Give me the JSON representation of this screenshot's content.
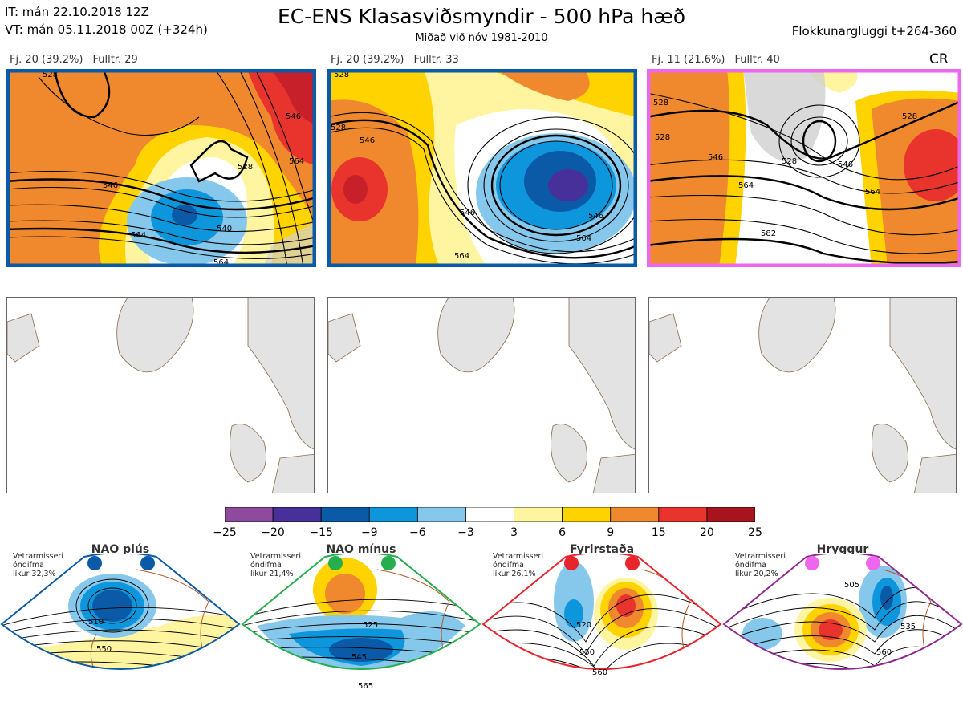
{
  "header": {
    "it_line": "IT: mán 22.10.2018 12Z",
    "vt_line": "VT: mán 05.11.2018 00Z  (+324h)",
    "title": "EC-ENS Klasasviðsmyndir - 500 hPa hæð",
    "subtitle": "Miðað við nóv 1981-2010",
    "window": "Flokkunargluggi t+264-360",
    "cr_label": "CR"
  },
  "chart_data": {
    "type": "heatmap",
    "clusters": [
      {
        "count_label": "Fj. 20 (39.2%)",
        "rep_label": "Fulltr. 29",
        "members": 20,
        "percent": 39.2,
        "representative": 29,
        "frame_color": "#0a5aa8",
        "contour_labels": [
          "528",
          "546",
          "564",
          "540",
          "528",
          "546",
          "564",
          "564"
        ]
      },
      {
        "count_label": "Fj. 20 (39.2%)",
        "rep_label": "Fulltr. 33",
        "members": 20,
        "percent": 39.2,
        "representative": 33,
        "frame_color": "#0a5aa8",
        "contour_labels": [
          "528",
          "546",
          "528",
          "546",
          "546",
          "564",
          "564"
        ]
      },
      {
        "count_label": "Fj. 11 (21.6%)",
        "rep_label": "Fulltr. 40",
        "members": 11,
        "percent": 21.6,
        "representative": 40,
        "frame_color": "#ee66ee",
        "contour_labels": [
          "528",
          "528",
          "546",
          "528",
          "546",
          "564",
          "564",
          "582",
          "528"
        ]
      }
    ],
    "colorbar": {
      "ticks": [
        "−25",
        "−20",
        "−15",
        "−9",
        "−6",
        "−3",
        "3",
        "6",
        "9",
        "15",
        "20",
        "25"
      ],
      "colors": [
        "#8e4a9c",
        "#48309a",
        "#0a5aa8",
        "#0e96dc",
        "#86c8ec",
        "#ffffff",
        "#fff5a0",
        "#ffd300",
        "#f0882e",
        "#e8342c",
        "#a8141e"
      ]
    },
    "regimes": [
      {
        "name": "NAO plús",
        "note": [
          "Vetrarmisseri",
          "óndifma",
          "líkur 32,3%"
        ],
        "dot_color": "#0a5aa8",
        "frame_color": "#0a5aa8",
        "contour_labels": [
          "510",
          "550"
        ]
      },
      {
        "name": "NAO mínus",
        "note": [
          "Vetrarmisseri",
          "óndifma",
          "líkur 21,4%"
        ],
        "dot_color": "#26ad4e",
        "frame_color": "#26ad4e",
        "contour_labels": [
          "525",
          "545",
          "565"
        ]
      },
      {
        "name": "Fyrirstaða",
        "note": [
          "Vetrarmisseri",
          "óndifma",
          "líkur 26,1%"
        ],
        "dot_color": "#e8242c",
        "frame_color": "#e8242c",
        "contour_labels": [
          "520",
          "550",
          "560"
        ]
      },
      {
        "name": "Hryggur",
        "note": [
          "Vetrarmisseri",
          "óndifma",
          "líkur 20,2%"
        ],
        "dot_color": "#ee66ee",
        "frame_color": "#8e2a8e",
        "contour_labels": [
          "505",
          "535",
          "560"
        ]
      }
    ]
  }
}
